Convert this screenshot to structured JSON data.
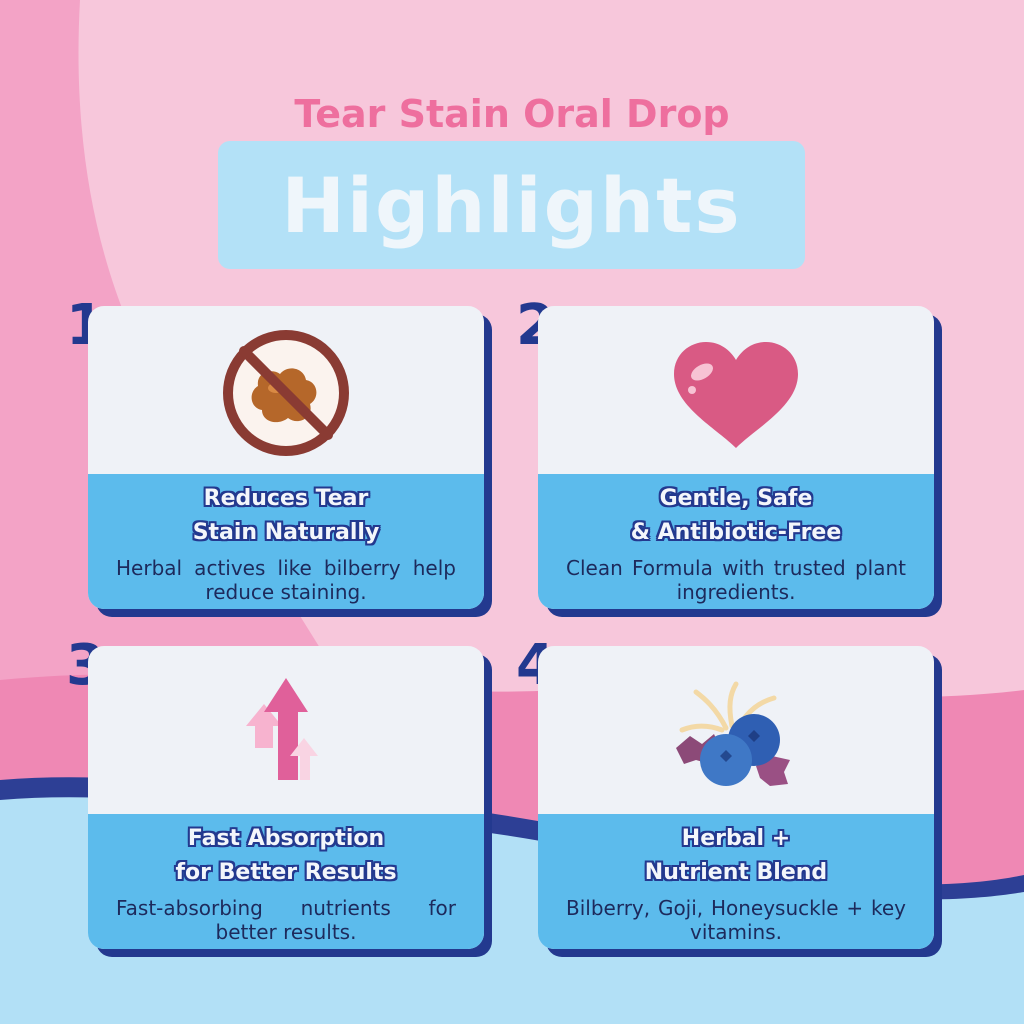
{
  "header": {
    "subtitle": "Tear Stain Oral Drop",
    "title": "Highlights"
  },
  "colors": {
    "background_pink": "#f7c7db",
    "accent_pink": "#ee6f9e",
    "navy": "#23398f",
    "card_blue": "#5cbbec",
    "title_box": "#b3e1f7"
  },
  "cards": [
    {
      "number": "1.",
      "icon": "no-stain-icon",
      "heading_line1": "Reduces Tear",
      "heading_line2": "Stain Naturally",
      "description": "Herbal actives like bilberry help reduce staining."
    },
    {
      "number": "2.",
      "icon": "heart-icon",
      "heading_line1": "Gentle, Safe",
      "heading_line2": "& Antibiotic-Free",
      "description": "Clean Formula with trusted plant ingredients."
    },
    {
      "number": "3.",
      "icon": "up-arrows-icon",
      "heading_line1": "Fast Absorption",
      "heading_line2": "for Better Results",
      "description": "Fast-absorbing nutrients for better results."
    },
    {
      "number": "4.",
      "icon": "berries-icon",
      "heading_line1": "Herbal +",
      "heading_line2": "Nutrient Blend",
      "description": "Bilberry, Goji, Honeysuckle + key vitamins."
    }
  ]
}
